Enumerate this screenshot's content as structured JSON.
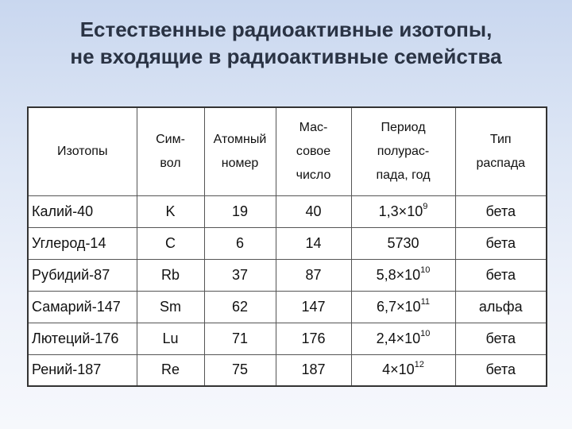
{
  "title": {
    "line1": "Естественные радиоактивные изотопы,",
    "line2": "не входящие в радиоактивные семейства"
  },
  "table": {
    "headers": [
      [
        "Изотопы"
      ],
      [
        "Сим-",
        "вол"
      ],
      [
        "Атомный",
        "номер"
      ],
      [
        "Мас-",
        "совое",
        "число"
      ],
      [
        "Период",
        "полурас-",
        "пада, год"
      ],
      [
        "Тип",
        "распада"
      ]
    ],
    "rows": [
      {
        "isotope": "Калий-40",
        "symbol": "K",
        "atomic": "19",
        "mass": "40",
        "half_mant": "1,3×10",
        "half_exp": "9",
        "decay": "бета"
      },
      {
        "isotope": "Углерод-14",
        "symbol": "C",
        "atomic": "6",
        "mass": "14",
        "half_mant": "5730",
        "half_exp": "",
        "decay": "бета"
      },
      {
        "isotope": "Рубидий-87",
        "symbol": "Rb",
        "atomic": "37",
        "mass": "87",
        "half_mant": "5,8×10",
        "half_exp": "10",
        "decay": "бета"
      },
      {
        "isotope": "Самарий-147",
        "symbol": "Sm",
        "atomic": "62",
        "mass": "147",
        "half_mant": "6,7×10",
        "half_exp": "11",
        "decay": "альфа"
      },
      {
        "isotope": "Лютеций-176",
        "symbol": "Lu",
        "atomic": "71",
        "mass": "176",
        "half_mant": "2,4×10",
        "half_exp": "10",
        "decay": "бета"
      },
      {
        "isotope": "Рений-187",
        "symbol": "Re",
        "atomic": "75",
        "mass": "187",
        "half_mant": "4×10",
        "half_exp": "12",
        "decay": "бета"
      }
    ]
  }
}
